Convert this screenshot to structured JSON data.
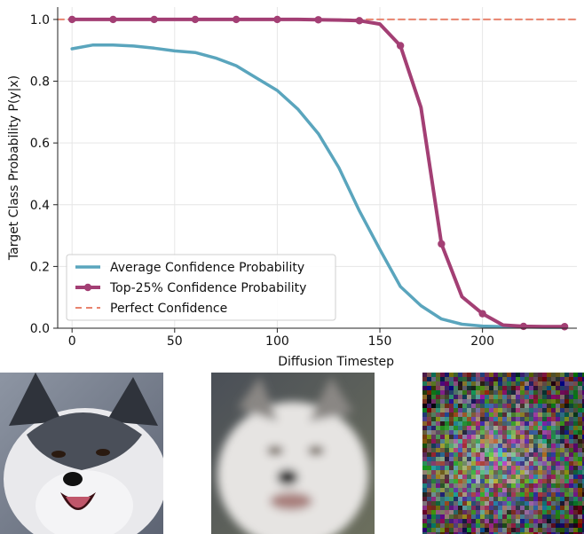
{
  "chart_data": {
    "type": "line",
    "title": "",
    "xlabel": "Diffusion Timestep",
    "ylabel": "Target Class Probability P(y|x)",
    "xlim": [
      -7,
      246
    ],
    "ylim": [
      0,
      1.04
    ],
    "xticks": [
      0,
      50,
      100,
      150,
      200
    ],
    "yticks": [
      0.0,
      0.2,
      0.4,
      0.6,
      0.8,
      1.0
    ],
    "grid": true,
    "legend_position": "lower-left",
    "series": [
      {
        "name": "Average Confidence Probability",
        "color": "#5aa5bd",
        "marker": false,
        "x": [
          0,
          10,
          20,
          30,
          40,
          50,
          60,
          70,
          80,
          90,
          100,
          110,
          120,
          130,
          140,
          150,
          160,
          170,
          180,
          190,
          200,
          210,
          220,
          230,
          240
        ],
        "y": [
          0.905,
          0.917,
          0.917,
          0.914,
          0.907,
          0.898,
          0.893,
          0.875,
          0.85,
          0.81,
          0.77,
          0.71,
          0.63,
          0.52,
          0.38,
          0.255,
          0.135,
          0.073,
          0.03,
          0.013,
          0.007,
          0.005,
          0.004,
          0.003,
          0.003
        ]
      },
      {
        "name": "Top-25% Confidence Probability",
        "color": "#a33f74",
        "marker": true,
        "x": [
          0,
          10,
          20,
          30,
          40,
          50,
          60,
          70,
          80,
          90,
          100,
          110,
          120,
          130,
          140,
          150,
          160,
          170,
          180,
          190,
          200,
          210,
          220,
          230,
          240
        ],
        "y": [
          1.0,
          1.0,
          1.0,
          1.0,
          1.0,
          1.0,
          1.0,
          1.0,
          1.0,
          1.0,
          1.0,
          1.0,
          0.999,
          0.998,
          0.996,
          0.985,
          0.915,
          0.715,
          0.273,
          0.102,
          0.047,
          0.01,
          0.006,
          0.005,
          0.005
        ]
      },
      {
        "name": "Perfect Confidence",
        "color": "#e8836e",
        "dashed": true,
        "x": [
          -7,
          246
        ],
        "y": [
          1.0,
          1.0
        ]
      }
    ]
  },
  "images": [
    {
      "name": "husky-clear-image",
      "palette": [
        "#f2f2f4",
        "#3b3f48",
        "#b8b0a4"
      ]
    },
    {
      "name": "husky-blurred-image",
      "palette": [
        "#e8e6e4",
        "#6a6a6a",
        "#c2bcb2"
      ]
    },
    {
      "name": "noise-image",
      "palette": [
        "#7d8a6e",
        "#a89a8e",
        "#6c7fa0"
      ]
    }
  ]
}
